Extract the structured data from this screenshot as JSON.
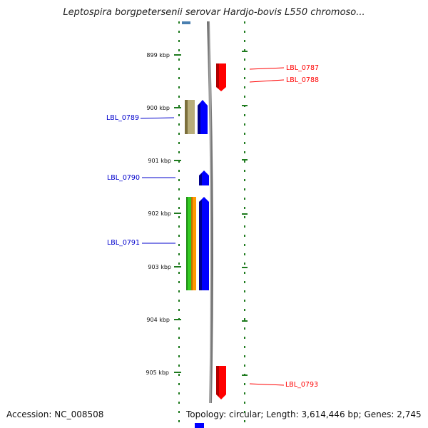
{
  "title": "Leptospira borgpetersenii serovar Hardjo-bovis L550 chromoso...",
  "footer": {
    "accession": "Accession: NC_008508",
    "summary": "Topology: circular; Length: 3,614,446 bp; Genes: 2,745"
  },
  "colors": {
    "forward_gene": "#0000ff",
    "reverse_gene": "#ff0000",
    "feature_green": "#33cc22",
    "feature_orange": "#ff9900",
    "feature_tan": "#b8ad7a",
    "tick": "#1e7a1e",
    "backbone": "#8c8c8c"
  },
  "scale": {
    "ticks": [
      {
        "label": "899 kbp"
      },
      {
        "label": "900 kbp"
      },
      {
        "label": "901 kbp"
      },
      {
        "label": "902 kbp"
      },
      {
        "label": "903 kbp"
      },
      {
        "label": "904 kbp"
      },
      {
        "label": "905 kbp"
      }
    ]
  },
  "gene_labels": {
    "reverse": [
      {
        "label": "LBL_0787"
      },
      {
        "label": "LBL_0788"
      },
      {
        "label": "LBL_0793"
      }
    ],
    "forward": [
      {
        "label": "LBL_0789"
      },
      {
        "label": "LBL_0790"
      },
      {
        "label": "LBL_0791"
      }
    ]
  }
}
